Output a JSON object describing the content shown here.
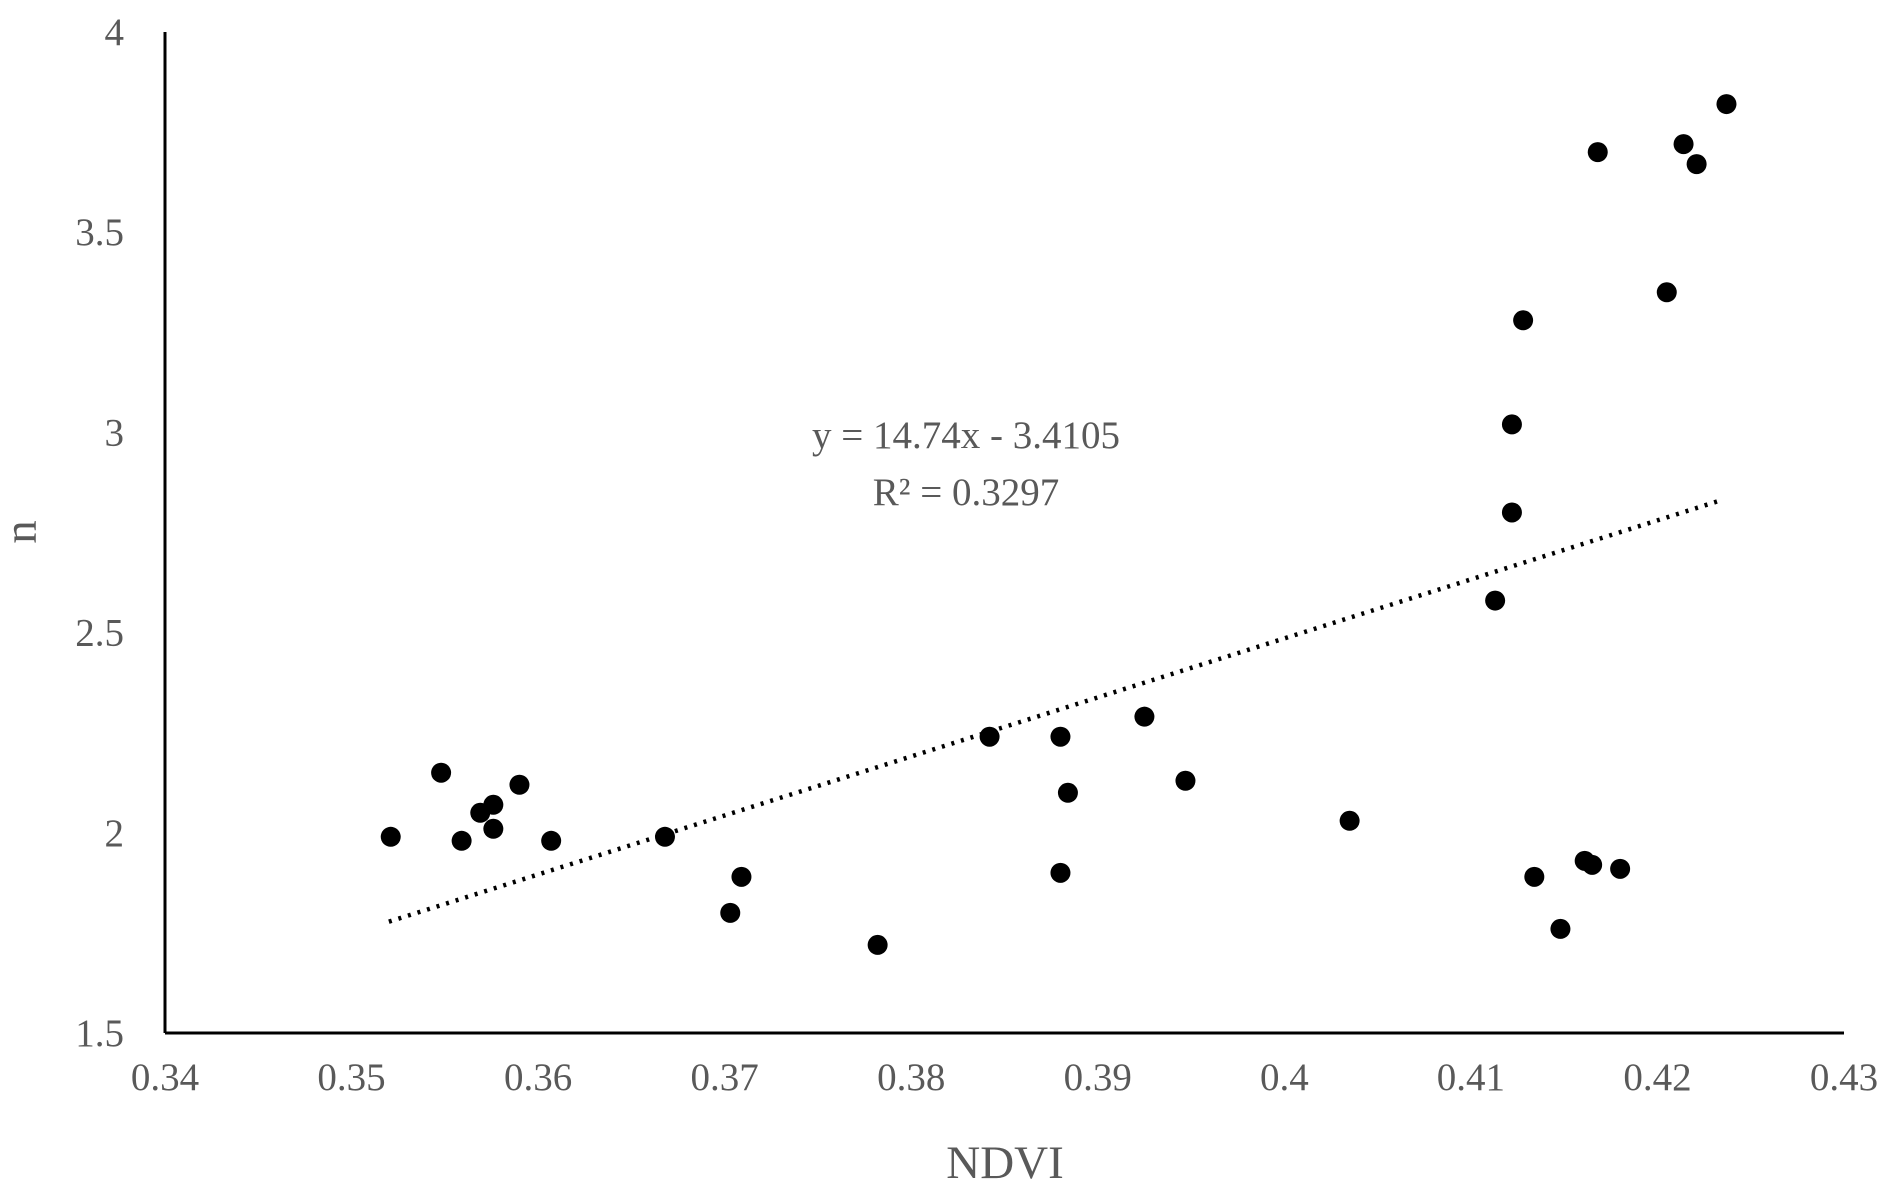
{
  "chart_data": {
    "type": "scatter",
    "xlabel": "NDVI",
    "ylabel": "n",
    "xlim": [
      0.34,
      0.43
    ],
    "ylim": [
      1.5,
      4
    ],
    "xticks": [
      "0.34",
      "0.35",
      "0.36",
      "0.37",
      "0.38",
      "0.39",
      "0.4",
      "0.41",
      "0.42",
      "0.43"
    ],
    "yticks": [
      "1.5",
      "2",
      "2.5",
      "3",
      "3.5",
      "4"
    ],
    "grid": false,
    "point_color": "#000000",
    "trendline": {
      "type": "linear",
      "style": "dotted",
      "slope": 14.74,
      "intercept": -3.4105,
      "x_range": [
        0.352,
        0.4235
      ],
      "equation_label": "y = 14.74x - 3.4105",
      "r2_label": "R² = 0.3297"
    },
    "points": [
      {
        "x": 0.3521,
        "y": 1.99
      },
      {
        "x": 0.3548,
        "y": 2.15
      },
      {
        "x": 0.3559,
        "y": 1.98
      },
      {
        "x": 0.3569,
        "y": 2.05
      },
      {
        "x": 0.3576,
        "y": 2.07
      },
      {
        "x": 0.3576,
        "y": 2.01
      },
      {
        "x": 0.359,
        "y": 2.12
      },
      {
        "x": 0.3607,
        "y": 1.98
      },
      {
        "x": 0.3668,
        "y": 1.99
      },
      {
        "x": 0.3703,
        "y": 1.8
      },
      {
        "x": 0.3709,
        "y": 1.89
      },
      {
        "x": 0.3782,
        "y": 1.72
      },
      {
        "x": 0.3842,
        "y": 2.24
      },
      {
        "x": 0.388,
        "y": 2.24
      },
      {
        "x": 0.388,
        "y": 1.9
      },
      {
        "x": 0.3884,
        "y": 2.1
      },
      {
        "x": 0.3925,
        "y": 2.29
      },
      {
        "x": 0.3947,
        "y": 2.13
      },
      {
        "x": 0.4035,
        "y": 2.03
      },
      {
        "x": 0.4113,
        "y": 2.58
      },
      {
        "x": 0.4122,
        "y": 2.8
      },
      {
        "x": 0.4122,
        "y": 3.02
      },
      {
        "x": 0.4128,
        "y": 3.28
      },
      {
        "x": 0.4134,
        "y": 1.89
      },
      {
        "x": 0.4148,
        "y": 1.76
      },
      {
        "x": 0.4161,
        "y": 1.93
      },
      {
        "x": 0.4165,
        "y": 1.92
      },
      {
        "x": 0.4168,
        "y": 3.7
      },
      {
        "x": 0.418,
        "y": 1.91
      },
      {
        "x": 0.4205,
        "y": 3.35
      },
      {
        "x": 0.4214,
        "y": 3.72
      },
      {
        "x": 0.4221,
        "y": 3.67
      },
      {
        "x": 0.4237,
        "y": 3.82
      }
    ]
  }
}
